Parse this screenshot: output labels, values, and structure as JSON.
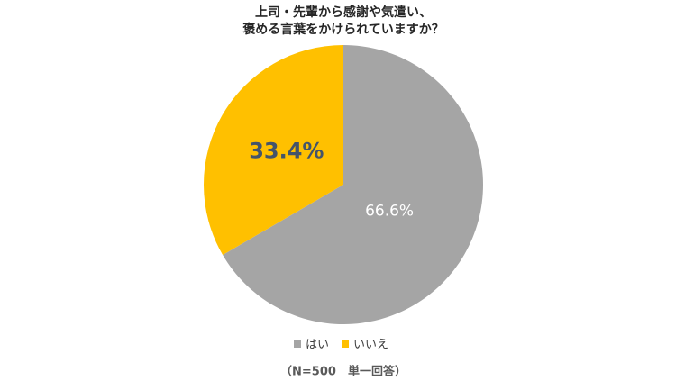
{
  "chart_data": {
    "type": "pie",
    "title": [
      "上司・先輩から感謝や気遣い、",
      "褒める言葉をかけられていますか？"
    ],
    "categories": [
      "はい",
      "いいえ"
    ],
    "values": [
      66.6,
      33.4
    ],
    "value_labels": [
      "66.6%",
      "33.4%"
    ],
    "colors": [
      "#a5a5a5",
      "#ffc000"
    ],
    "note": "（N=500　単一回答）"
  }
}
